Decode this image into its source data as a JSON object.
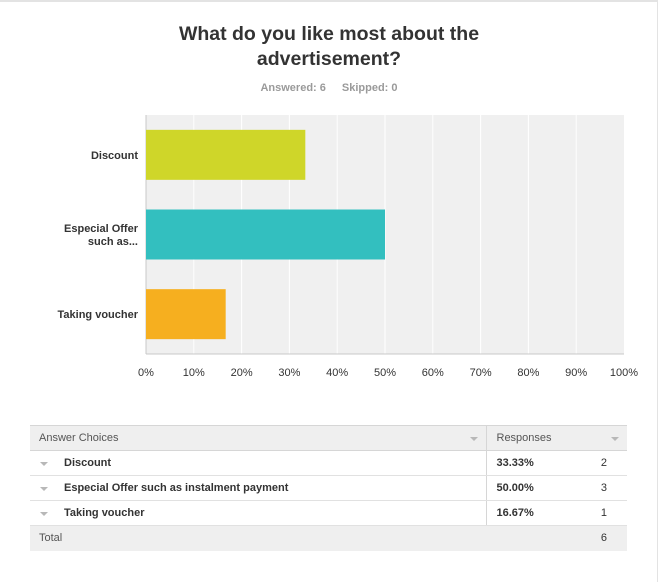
{
  "question": {
    "title_line1": "What do you like most about the",
    "title_line2": "advertisement?",
    "answered": "Answered: 6",
    "skipped": "Skipped: 0"
  },
  "chart_data": {
    "type": "bar",
    "orientation": "horizontal",
    "categories": [
      [
        "Discount"
      ],
      [
        "Especial Offer",
        "such as..."
      ],
      [
        "Taking voucher"
      ]
    ],
    "values": [
      33.33,
      50.0,
      16.67
    ],
    "colors": [
      "#cfd629",
      "#33bfbf",
      "#f6af1f"
    ],
    "xlim": [
      0,
      100
    ],
    "ticks": [
      0,
      10,
      20,
      30,
      40,
      50,
      60,
      70,
      80,
      90,
      100
    ],
    "tick_labels": [
      "0%",
      "10%",
      "20%",
      "30%",
      "40%",
      "50%",
      "60%",
      "70%",
      "80%",
      "90%",
      "100%"
    ],
    "grid": true,
    "background": "#f0f0f0"
  },
  "table": {
    "header_choice": "Answer Choices",
    "header_responses": "Responses",
    "rows": [
      {
        "choice": "Discount",
        "percent": "33.33%",
        "count": "2"
      },
      {
        "choice": "Especial Offer such as instalment payment",
        "percent": "50.00%",
        "count": "3"
      },
      {
        "choice": "Taking voucher",
        "percent": "16.67%",
        "count": "1"
      }
    ],
    "total_label": "Total",
    "total_count": "6"
  }
}
